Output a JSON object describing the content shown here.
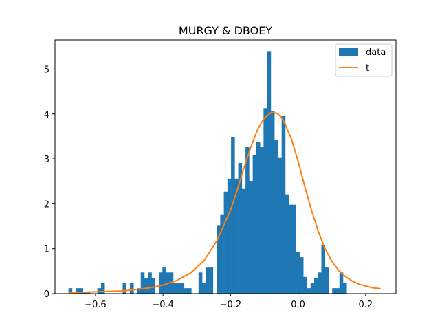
{
  "chart_data": {
    "type": "bar",
    "title": "MURGY & DBOEY",
    "xlabel": "",
    "ylabel": "",
    "xlim": [
      -0.72,
      0.29
    ],
    "ylim": [
      0,
      5.65
    ],
    "x_ticks": [
      -0.6,
      -0.4,
      -0.2,
      0.0,
      0.2
    ],
    "x_tick_labels": [
      "−0.6",
      "−0.4",
      "−0.2",
      "0.0",
      "0.2"
    ],
    "y_ticks": [
      0,
      1,
      2,
      3,
      4,
      5
    ],
    "y_tick_labels": [
      "0",
      "1",
      "2",
      "3",
      "4",
      "5"
    ],
    "legend_position": "top-right",
    "colors": {
      "histogram": "#1f77b4",
      "curve": "#ff7f0e"
    },
    "histogram": {
      "name": "data",
      "bin_start": -0.68,
      "bin_width": 0.0107,
      "values": [
        0.12,
        0.02,
        0.12,
        0.12,
        0.02,
        0.02,
        0,
        0,
        0.12,
        0.23,
        0,
        0,
        0,
        0,
        0,
        0.23,
        0,
        0.23,
        0,
        0.12,
        0.47,
        0.35,
        0.47,
        0.35,
        0,
        0.47,
        0.58,
        0.47,
        0.47,
        0.23,
        0.23,
        0.23,
        0.12,
        0.12,
        0,
        0,
        0.47,
        0.23,
        0.58,
        0.58,
        0,
        1.51,
        1.75,
        2.27,
        2.56,
        3.49,
        2.56,
        2.91,
        2.33,
        3.26,
        2.51,
        3.08,
        3.37,
        3.26,
        4.13,
        5.4,
        4.07,
        3.43,
        3.02,
        3.95,
        2.21,
        1.98,
        1.98,
        0.93,
        0.81,
        0.37,
        0.12,
        0.23,
        0.35,
        0.47,
        1.08,
        0.58,
        0,
        0.12,
        0.12,
        0.47,
        0.23
      ]
    },
    "series": [
      {
        "name": "t",
        "x": [
          -0.68,
          -0.64,
          -0.6,
          -0.56,
          -0.52,
          -0.48,
          -0.44,
          -0.4,
          -0.36,
          -0.32,
          -0.28,
          -0.24,
          -0.2,
          -0.18,
          -0.16,
          -0.14,
          -0.12,
          -0.1,
          -0.08,
          -0.07,
          -0.06,
          -0.05,
          -0.04,
          -0.02,
          0.0,
          0.02,
          0.04,
          0.06,
          0.08,
          0.1,
          0.12,
          0.14,
          0.16,
          0.18,
          0.2,
          0.22,
          0.245
        ],
        "y": [
          0.02,
          0.03,
          0.04,
          0.05,
          0.06,
          0.09,
          0.13,
          0.19,
          0.29,
          0.45,
          0.72,
          1.18,
          1.86,
          2.31,
          2.8,
          3.26,
          3.65,
          3.91,
          4.03,
          4.03,
          4.0,
          3.93,
          3.8,
          3.45,
          2.95,
          2.38,
          1.85,
          1.38,
          1.0,
          0.72,
          0.52,
          0.38,
          0.28,
          0.21,
          0.17,
          0.13,
          0.11
        ]
      }
    ]
  }
}
